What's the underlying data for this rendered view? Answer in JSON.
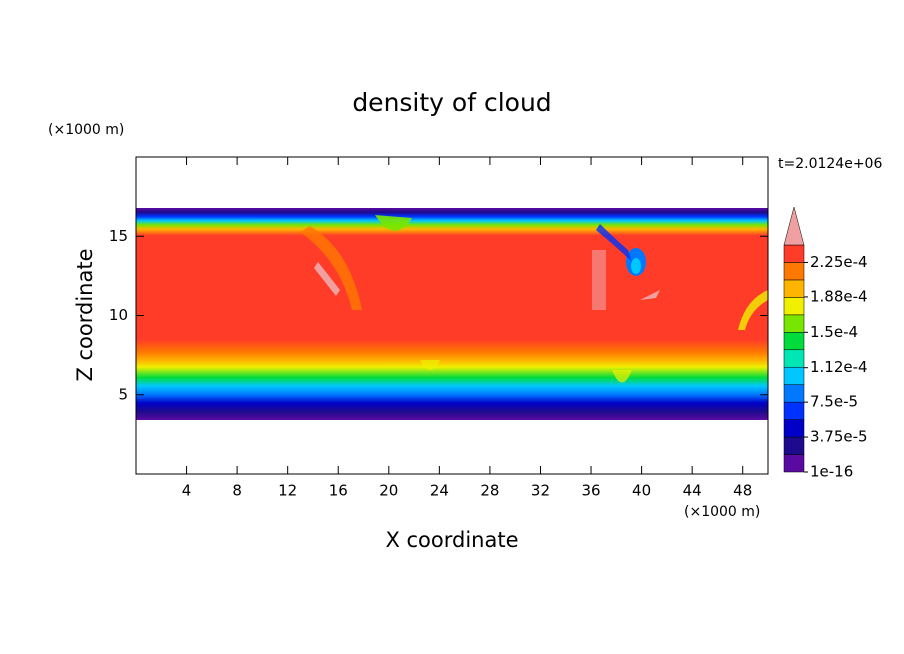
{
  "chart_data": {
    "type": "contour",
    "title": "density of cloud",
    "x_label": "X coordinate",
    "y_label": "Z coordinate",
    "x_unit": "(×1000 m)",
    "y_unit": "(×1000 m)",
    "time_label": "t=2.0124e+06",
    "xlim": [
      0,
      50
    ],
    "ylim": [
      0,
      20
    ],
    "xticks": [
      4,
      8,
      12,
      16,
      20,
      24,
      28,
      32,
      36,
      40,
      44,
      48
    ],
    "yticks": [
      5,
      10,
      15
    ],
    "colorbar": {
      "clim": [
        1e-16,
        0.00024375
      ],
      "colors": [
        "#5a0aa0",
        "#1e0a8c",
        "#0000c8",
        "#0032ff",
        "#0078ff",
        "#00c8ff",
        "#00e6b4",
        "#00dc3c",
        "#78e600",
        "#f0f000",
        "#ffb400",
        "#ff7800",
        "#ff3c28"
      ],
      "extend_color": "#f0a0a0",
      "ticks": [
        {
          "value": 1e-16,
          "label": "1e-16"
        },
        {
          "value": 3.75e-05,
          "label": "3.75e-5"
        },
        {
          "value": 7.5e-05,
          "label": "7.5e-5"
        },
        {
          "value": 0.000112,
          "label": "1.12e-4"
        },
        {
          "value": 0.00015,
          "label": "1.5e-4"
        },
        {
          "value": 0.000188,
          "label": "1.88e-4"
        },
        {
          "value": 0.000225,
          "label": "2.25e-4"
        }
      ]
    }
  }
}
